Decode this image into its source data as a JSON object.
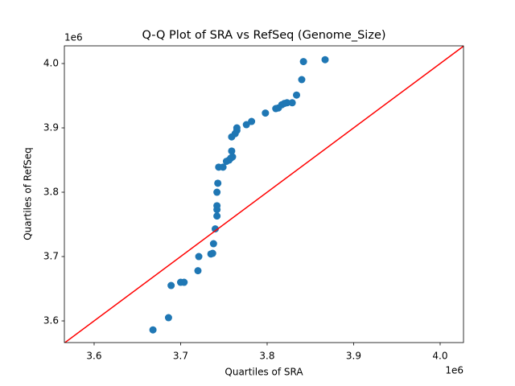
{
  "chart_data": {
    "type": "scatter",
    "title": "Q-Q Plot of SRA vs RefSeq (Genome_Size)",
    "x_label": "Quartiles of SRA",
    "y_label": "Quartiles of RefSeq",
    "x_offset": "1e6",
    "y_offset": "1e6",
    "xlim": [
      3.5656,
      4.027
    ],
    "ylim": [
      3.5663,
      4.0275
    ],
    "xticks": [
      3.6,
      3.7,
      3.8,
      3.9,
      {
        "value": 4,
        "label": "4.0"
      }
    ],
    "yticks": [
      3.6,
      3.7,
      3.8,
      3.9,
      {
        "value": 4,
        "label": "4.0"
      }
    ],
    "reference_line_color": "#ff0000",
    "series": [
      {
        "color": "#1f77b4",
        "x": [
          3.668,
          3.686,
          3.689,
          3.7,
          3.704,
          3.72,
          3.721,
          3.735,
          3.737,
          3.738,
          3.74,
          3.742,
          3.742,
          3.742,
          3.742,
          3.743,
          3.744,
          3.749,
          3.753,
          3.756,
          3.758,
          3.76,
          3.759,
          3.759,
          3.763,
          3.765,
          3.765,
          3.776,
          3.782,
          3.798,
          3.81,
          3.813,
          3.817,
          3.82,
          3.823,
          3.829,
          3.834,
          3.84,
          3.842,
          3.867
        ],
        "values": [
          3.586,
          3.605,
          3.655,
          3.66,
          3.66,
          3.678,
          3.7,
          3.704,
          3.705,
          3.72,
          3.743,
          3.763,
          3.773,
          3.779,
          3.8,
          3.814,
          3.839,
          3.839,
          3.848,
          3.85,
          3.853,
          3.855,
          3.864,
          3.886,
          3.891,
          3.896,
          3.9,
          3.905,
          3.91,
          3.923,
          3.93,
          3.931,
          3.936,
          3.938,
          3.939,
          3.939,
          3.951,
          3.975,
          4.003,
          4.006
        ]
      }
    ]
  }
}
